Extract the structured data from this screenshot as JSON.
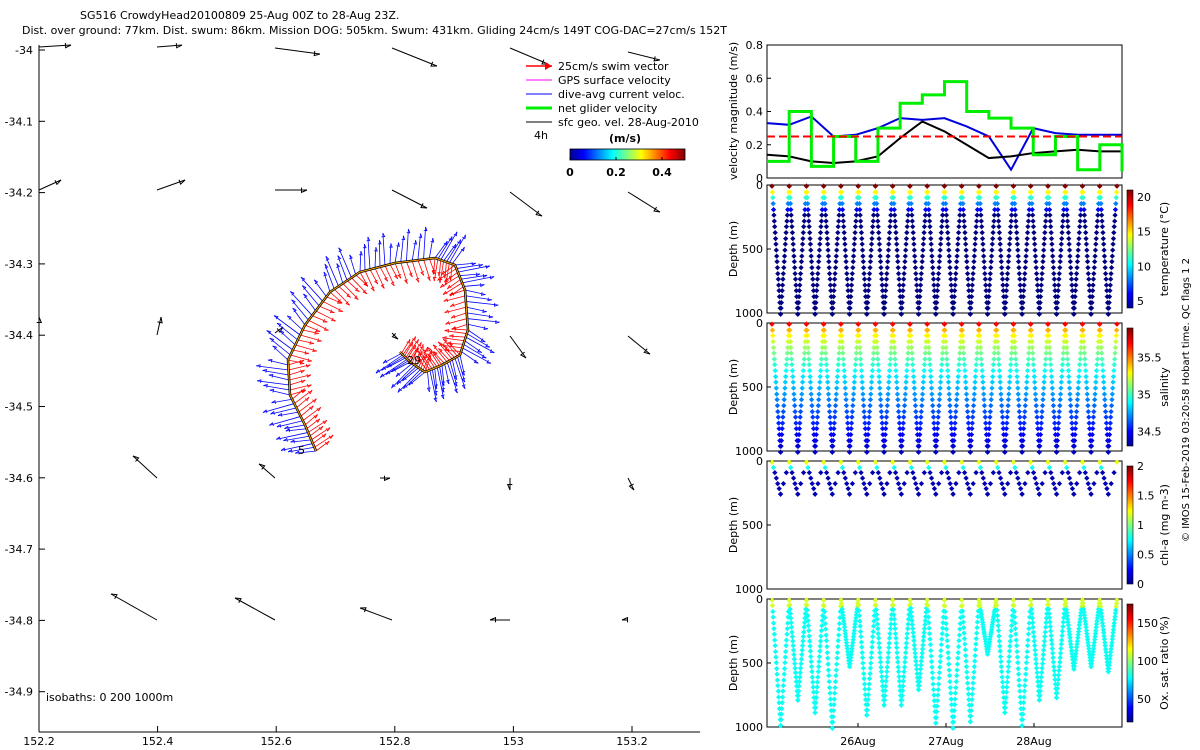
{
  "header": {
    "title_line1": "SG516 CrowdyHead20100809 25-Aug 00Z to 28-Aug 23Z.",
    "title_line2": "Dist. over ground: 77km. Dist. swum: 86km. Mission DOG: 505km. Swum: 431km. Gliding 24cm/s 149T COG-DAC=27cm/s 152T"
  },
  "map": {
    "xlim": [
      152.2,
      153.35
    ],
    "ylim": [
      -34.95,
      -34.0
    ],
    "x_ticks": [
      "152.2",
      "152.4",
      "152.6",
      "152.8",
      "153",
      "153.2"
    ],
    "y_ticks": [
      "-34",
      "-34.1",
      "-34.2",
      "-34.3",
      "-34.4",
      "-34.5",
      "-34.6",
      "-34.7",
      "-34.8",
      "-34.9"
    ],
    "legend": {
      "items": [
        {
          "label": "25cm/s swim vector",
          "color": "#ff0000"
        },
        {
          "label": "GPS surface velocity",
          "color": "#ff00ff"
        },
        {
          "label": "dive-avg current veloc.",
          "color": "#0000ff"
        },
        {
          "label": "net glider velocity",
          "color": "#00ee00"
        },
        {
          "label": "sfc geo. vel. 28-Aug-2010",
          "color": "#000000"
        }
      ],
      "placement": "top-right"
    },
    "colorbar": {
      "label": "(m/s)",
      "side_label": "4h",
      "ticks": [
        "0",
        "0.2",
        "0.4"
      ],
      "range": [
        0,
        0.5
      ]
    },
    "isobath_label": "isobaths: 0   200  1000m",
    "start_label": "5",
    "end_label": "29",
    "colors": {
      "swim": "#ff0000",
      "current": "#0000ff",
      "track": "#000000",
      "track_highlight": "#ffa500",
      "sfc": "#000000"
    }
  },
  "right_panels": {
    "velocity": {
      "ylabel": "velocity magnitude (m/s)",
      "ylim": [
        0,
        0.8
      ],
      "y_ticks": [
        "0",
        "0.2",
        "0.4",
        "0.6",
        "0.8"
      ],
      "threshold": 0.25
    },
    "temperature": {
      "ylabel": "Depth (m)",
      "clabel": "temperature (°C)",
      "y_ticks": [
        "0",
        "500",
        "1000"
      ],
      "c_ticks": [
        "5",
        "10",
        "15",
        "20"
      ],
      "c_range": [
        4,
        21
      ]
    },
    "salinity": {
      "ylabel": "Depth (m)",
      "clabel": "salinity",
      "y_ticks": [
        "0",
        "500",
        "1000"
      ],
      "c_ticks": [
        "34.5",
        "35",
        "35.5"
      ],
      "c_range": [
        34.3,
        35.9
      ]
    },
    "chla": {
      "ylabel": "Depth (m)",
      "clabel": "chl-a (mg m-3)",
      "y_ticks": [
        "0",
        "500",
        "1000"
      ],
      "c_ticks": [
        "0",
        "0.5",
        "1",
        "1.5",
        "2"
      ],
      "c_range": [
        0,
        2
      ]
    },
    "oxygen": {
      "ylabel": "Depth (m)",
      "clabel": "Ox. sat. ratio (%)",
      "y_ticks": [
        "0",
        "500",
        "1000"
      ],
      "c_ticks": [
        "50",
        "100",
        "150"
      ],
      "c_range": [
        20,
        175
      ]
    },
    "x_ticks": [
      "26Aug",
      "27Aug",
      "28Aug"
    ],
    "side_text": "© IMOS 15-Feb-2019 03:20:58 Hobart time. QC flags 1  2"
  },
  "chart_data": [
    {
      "type": "line",
      "title": "",
      "xlabel": "",
      "ylabel": "velocity magnitude (m/s)",
      "ylim": [
        0,
        0.8
      ],
      "x": [
        "25Aug00",
        "25Aug06",
        "25Aug12",
        "25Aug18",
        "26Aug00",
        "26Aug06",
        "26Aug12",
        "26Aug18",
        "27Aug00",
        "27Aug06",
        "27Aug12",
        "27Aug18",
        "28Aug00",
        "28Aug06",
        "28Aug12",
        "28Aug18",
        "29Aug00"
      ],
      "series": [
        {
          "values": [
            0.33,
            0.32,
            0.37,
            0.25,
            0.26,
            0.3,
            0.36,
            0.35,
            0.36,
            0.31,
            0.25,
            0.05,
            0.3,
            0.27,
            0.26,
            0.26,
            0.26
          ],
          "color": "#0000dd"
        },
        {
          "values": [
            0.14,
            0.13,
            0.1,
            0.09,
            0.1,
            0.13,
            0.24,
            0.34,
            0.28,
            0.2,
            0.12,
            0.13,
            0.15,
            0.16,
            0.17,
            0.16,
            0.16
          ],
          "color": "#000000"
        },
        {
          "values": [
            0.1,
            0.4,
            0.07,
            0.25,
            0.1,
            0.3,
            0.45,
            0.5,
            0.58,
            0.4,
            0.36,
            0.3,
            0.14,
            0.25,
            0.05,
            0.2,
            0.04
          ],
          "color": "#00ee00"
        },
        {
          "values": [
            0.25,
            0.25,
            0.25,
            0.25,
            0.25,
            0.25,
            0.25,
            0.25,
            0.25,
            0.25,
            0.25,
            0.25,
            0.25,
            0.25,
            0.25,
            0.25,
            0.25
          ],
          "color": "#ff0000"
        }
      ]
    }
  ]
}
